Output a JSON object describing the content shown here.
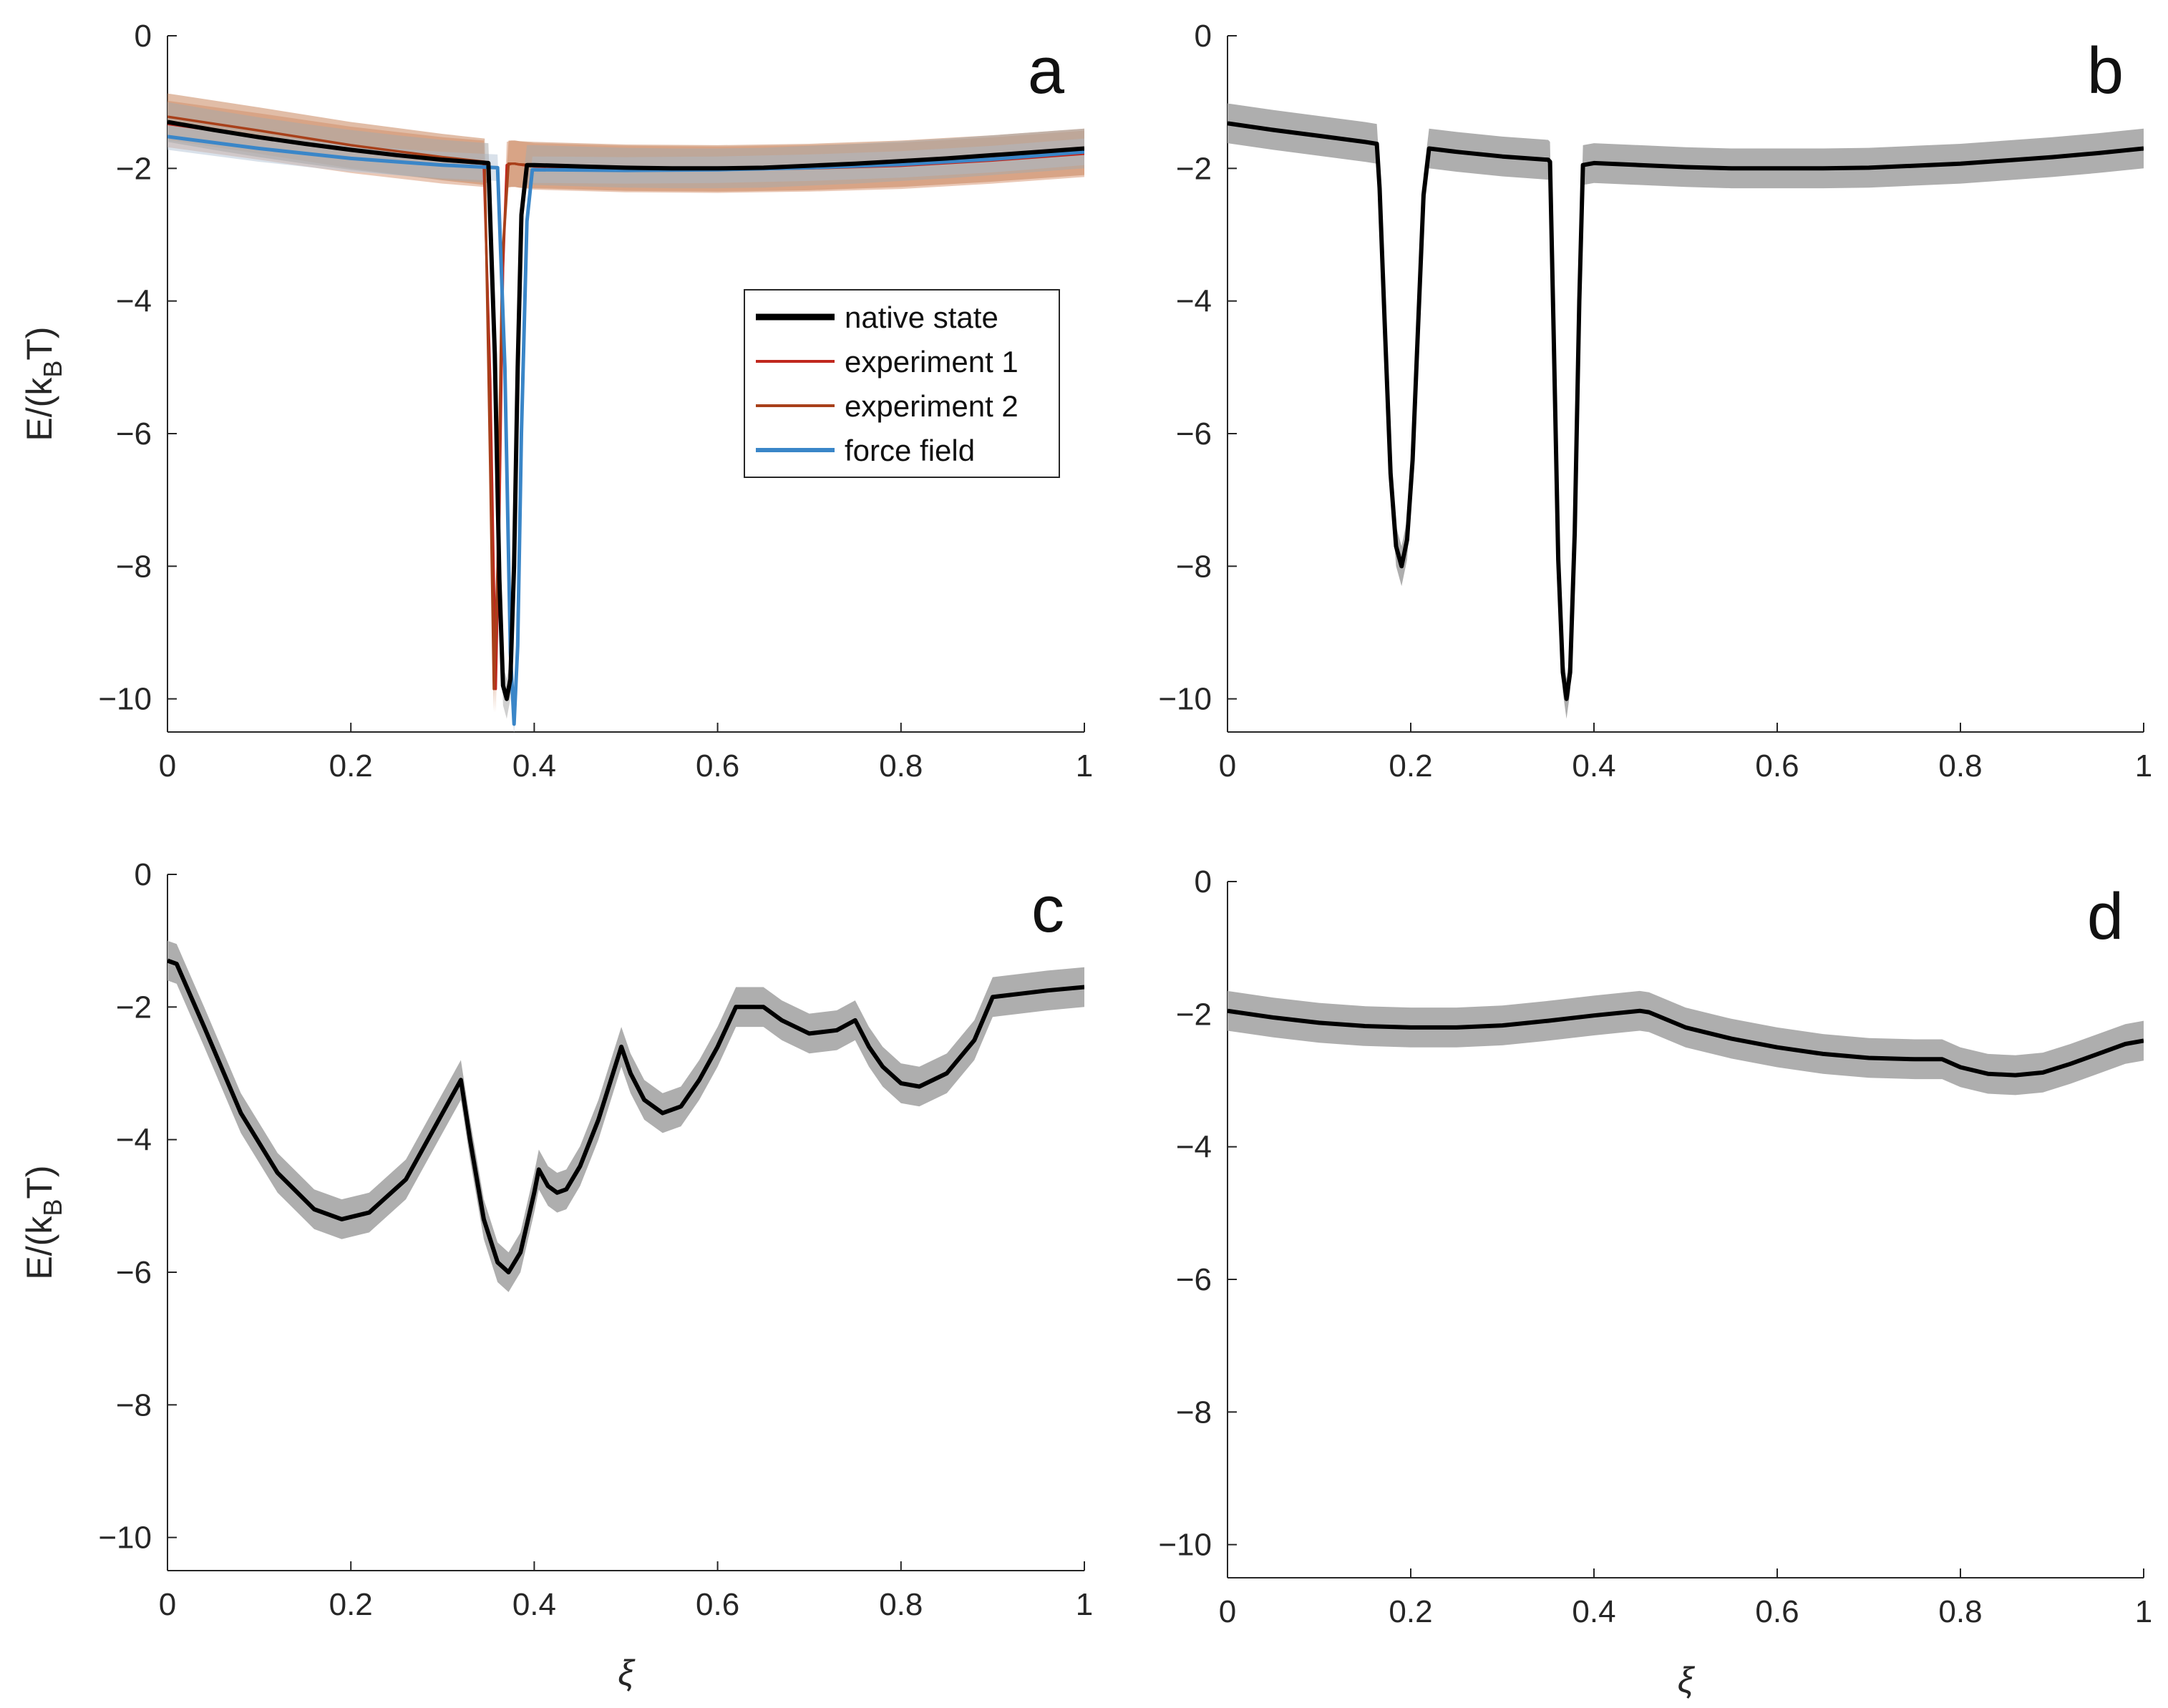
{
  "figure": {
    "xlabel": "ξ",
    "ylabel": "E/(k",
    "ylabel_sub": "B",
    "ylabel_end": "T)",
    "x_ticks": [
      0,
      0.2,
      0.4,
      0.6,
      0.8,
      1
    ],
    "x_tick_labels": [
      "0",
      "0.2",
      "0.4",
      "0.6",
      "0.8",
      "1"
    ],
    "y_ticks": [
      0,
      -2,
      -4,
      -6,
      -8,
      -10
    ],
    "y_tick_labels": [
      "0",
      "−2",
      "−4",
      "−6",
      "−8",
      "−10"
    ],
    "band_color": "#aaaaaa",
    "line_color": "#000000",
    "axis_color": "#262626"
  },
  "chart_data": [
    {
      "panel": "a",
      "type": "line",
      "xlim": [
        0,
        1
      ],
      "ylim": [
        -10.5,
        0
      ],
      "legend": [
        {
          "label": "native state",
          "color": "#000000",
          "width": 9
        },
        {
          "label": "experiment 1",
          "color": "#c0281e",
          "width": 4
        },
        {
          "label": "experiment 2",
          "color": "#a8401a",
          "width": 4
        },
        {
          "label": "force field",
          "color": "#3a86c8",
          "width": 6
        }
      ],
      "series": [
        {
          "name": "experiment 1",
          "color": "#c0281e",
          "band_color": "#d99a7a",
          "band": 0.35,
          "x": [
            0,
            0.1,
            0.2,
            0.3,
            0.345,
            0.352,
            0.358,
            0.362,
            0.366,
            0.37,
            0.375,
            0.379,
            0.383,
            0.4,
            0.5,
            0.6,
            0.7,
            0.8,
            0.9,
            1
          ],
          "y": [
            -1.33,
            -1.52,
            -1.72,
            -1.88,
            -1.93,
            -5.2,
            -9.85,
            -7.2,
            -3.5,
            -1.95,
            -1.93,
            -1.93,
            -1.94,
            -1.97,
            -2.01,
            -2.02,
            -2.0,
            -1.96,
            -1.88,
            -1.78
          ]
        },
        {
          "name": "experiment 2",
          "color": "#a8401a",
          "band_color": "#c8875e",
          "band": 0.35,
          "x": [
            0,
            0.1,
            0.2,
            0.3,
            0.346,
            0.352,
            0.356,
            0.36,
            0.365,
            0.372,
            0.379,
            0.384,
            0.4,
            0.5,
            0.6,
            0.7,
            0.8,
            0.9,
            1
          ],
          "y": [
            -1.22,
            -1.43,
            -1.65,
            -1.83,
            -1.9,
            -6.5,
            -9.85,
            -8.0,
            -3.4,
            -1.93,
            -1.93,
            -1.94,
            -1.95,
            -1.99,
            -2.0,
            -1.98,
            -1.93,
            -1.85,
            -1.75
          ]
        },
        {
          "name": "force field",
          "color": "#3a86c8",
          "band_color": "#b9c9d8",
          "band": 0.2,
          "x": [
            0,
            0.1,
            0.2,
            0.3,
            0.36,
            0.368,
            0.374,
            0.378,
            0.382,
            0.386,
            0.392,
            0.398,
            0.4,
            0.5,
            0.6,
            0.7,
            0.8,
            0.9,
            1
          ],
          "y": [
            -1.52,
            -1.7,
            -1.85,
            -1.95,
            -1.99,
            -5.0,
            -9.3,
            -10.38,
            -9.2,
            -6.0,
            -2.8,
            -2.02,
            -2.02,
            -2.03,
            -2.02,
            -1.99,
            -1.94,
            -1.86,
            -1.75
          ]
        },
        {
          "name": "native state",
          "color": "#000000",
          "band_color": "#aaaaaa",
          "band": 0.3,
          "x": [
            0,
            0.05,
            0.1,
            0.15,
            0.2,
            0.25,
            0.3,
            0.33,
            0.35,
            0.357,
            0.362,
            0.366,
            0.37,
            0.374,
            0.378,
            0.382,
            0.386,
            0.392,
            0.4,
            0.45,
            0.5,
            0.55,
            0.6,
            0.65,
            0.7,
            0.75,
            0.8,
            0.85,
            0.9,
            0.95,
            1
          ],
          "y": [
            -1.3,
            -1.42,
            -1.53,
            -1.63,
            -1.72,
            -1.8,
            -1.87,
            -1.9,
            -1.92,
            -4.8,
            -8.2,
            -9.8,
            -10.0,
            -9.7,
            -8.0,
            -5.0,
            -2.7,
            -1.95,
            -1.95,
            -1.97,
            -1.99,
            -2.0,
            -2.0,
            -1.99,
            -1.96,
            -1.93,
            -1.89,
            -1.85,
            -1.8,
            -1.75,
            -1.7
          ]
        }
      ]
    },
    {
      "panel": "b",
      "type": "line",
      "xlim": [
        0,
        1
      ],
      "ylim": [
        -10.5,
        0
      ],
      "series": [
        {
          "name": "curve",
          "color": "#000000",
          "band_color": "#aaaaaa",
          "band": 0.3,
          "x": [
            0,
            0.05,
            0.1,
            0.15,
            0.163,
            0.166,
            0.172,
            0.178,
            0.184,
            0.19,
            0.196,
            0.202,
            0.208,
            0.214,
            0.22,
            0.25,
            0.3,
            0.35,
            0.352,
            0.356,
            0.361,
            0.366,
            0.37,
            0.374,
            0.379,
            0.384,
            0.388,
            0.4,
            0.45,
            0.5,
            0.55,
            0.6,
            0.65,
            0.7,
            0.75,
            0.8,
            0.85,
            0.9,
            0.95,
            1
          ],
          "y": [
            -1.32,
            -1.42,
            -1.51,
            -1.6,
            -1.63,
            -2.3,
            -4.5,
            -6.6,
            -7.7,
            -8.0,
            -7.6,
            -6.4,
            -4.4,
            -2.4,
            -1.7,
            -1.75,
            -1.82,
            -1.87,
            -1.9,
            -4.5,
            -7.9,
            -9.6,
            -10.0,
            -9.6,
            -7.5,
            -4.0,
            -1.95,
            -1.92,
            -1.95,
            -1.98,
            -2.0,
            -2.0,
            -2.0,
            -1.99,
            -1.96,
            -1.93,
            -1.88,
            -1.83,
            -1.77,
            -1.7
          ]
        }
      ]
    },
    {
      "panel": "c",
      "type": "line",
      "xlim": [
        0,
        1
      ],
      "ylim": [
        -10.5,
        0
      ],
      "series": [
        {
          "name": "curve",
          "color": "#000000",
          "band_color": "#aaaaaa",
          "band": 0.3,
          "x": [
            0,
            0.01,
            0.04,
            0.08,
            0.12,
            0.16,
            0.19,
            0.22,
            0.26,
            0.3,
            0.32,
            0.33,
            0.345,
            0.36,
            0.372,
            0.385,
            0.4,
            0.405,
            0.415,
            0.425,
            0.435,
            0.45,
            0.47,
            0.495,
            0.505,
            0.52,
            0.54,
            0.56,
            0.58,
            0.6,
            0.62,
            0.65,
            0.67,
            0.7,
            0.73,
            0.75,
            0.765,
            0.78,
            0.8,
            0.82,
            0.85,
            0.88,
            0.9,
            0.93,
            0.96,
            1
          ],
          "y": [
            -1.3,
            -1.35,
            -2.3,
            -3.6,
            -4.5,
            -5.05,
            -5.2,
            -5.1,
            -4.6,
            -3.6,
            -3.1,
            -4.0,
            -5.2,
            -5.85,
            -6.0,
            -5.7,
            -4.8,
            -4.45,
            -4.7,
            -4.8,
            -4.75,
            -4.4,
            -3.7,
            -2.6,
            -3.0,
            -3.4,
            -3.6,
            -3.5,
            -3.1,
            -2.6,
            -2.0,
            -2.0,
            -2.2,
            -2.4,
            -2.35,
            -2.2,
            -2.6,
            -2.9,
            -3.15,
            -3.2,
            -3.0,
            -2.5,
            -1.85,
            -1.8,
            -1.75,
            -1.7
          ]
        }
      ]
    },
    {
      "panel": "d",
      "type": "line",
      "xlim": [
        0,
        1
      ],
      "ylim": [
        -10.5,
        0
      ],
      "series": [
        {
          "name": "curve",
          "color": "#000000",
          "band_color": "#aaaaaa",
          "band": 0.3,
          "x": [
            0,
            0.05,
            0.1,
            0.15,
            0.2,
            0.25,
            0.3,
            0.35,
            0.4,
            0.45,
            0.46,
            0.5,
            0.55,
            0.6,
            0.65,
            0.7,
            0.75,
            0.78,
            0.8,
            0.83,
            0.86,
            0.89,
            0.92,
            0.95,
            0.98,
            1
          ],
          "y": [
            -1.95,
            -2.05,
            -2.13,
            -2.18,
            -2.2,
            -2.2,
            -2.17,
            -2.1,
            -2.02,
            -1.95,
            -1.97,
            -2.2,
            -2.37,
            -2.5,
            -2.6,
            -2.66,
            -2.68,
            -2.68,
            -2.8,
            -2.9,
            -2.92,
            -2.88,
            -2.75,
            -2.6,
            -2.45,
            -2.4
          ]
        }
      ]
    }
  ]
}
